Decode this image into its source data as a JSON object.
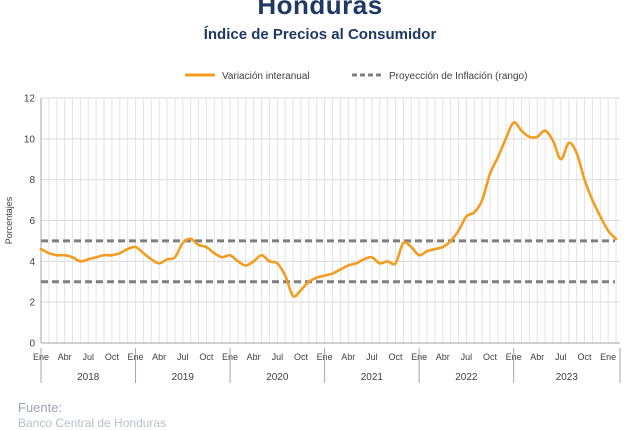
{
  "header": {
    "title": "Honduras",
    "subtitle": "Índice de Precios al Consumidor"
  },
  "footer": {
    "source_label": "Fuente:",
    "source_text": "Banco Central de Honduras"
  },
  "chart_data": {
    "type": "line",
    "title": "Honduras",
    "subtitle": "Índice de Precios al Consumidor",
    "ylabel": "Porcentajes",
    "xlabel": "",
    "ylim": [
      0,
      12
    ],
    "yticks": [
      0,
      2,
      4,
      6,
      8,
      10,
      12
    ],
    "grid": true,
    "legend_placement": "top",
    "month_tick_labels": [
      "Ene",
      "Abr",
      "Jul",
      "Oct"
    ],
    "year_labels": [
      "2018",
      "2019",
      "2020",
      "2021",
      "2022",
      "2023"
    ],
    "series": [
      {
        "name": "Variación interanual",
        "color": "#f39c1f",
        "style": "solid",
        "start": "2018-01",
        "end": "2023-07",
        "values": [
          4.6,
          4.4,
          4.3,
          4.3,
          4.2,
          4.0,
          4.1,
          4.2,
          4.3,
          4.3,
          4.4,
          4.6,
          4.7,
          4.4,
          4.1,
          3.9,
          4.1,
          4.2,
          4.9,
          5.1,
          4.8,
          4.7,
          4.4,
          4.2,
          4.3,
          4.0,
          3.8,
          4.0,
          4.3,
          4.0,
          3.9,
          3.3,
          2.3,
          2.6,
          3.0,
          3.2,
          3.3,
          3.4,
          3.6,
          3.8,
          3.9,
          4.1,
          4.2,
          3.9,
          4.0,
          3.9,
          4.9,
          4.7,
          4.3,
          4.5,
          4.6,
          4.7,
          5.0,
          5.5,
          6.2,
          6.4,
          7.0,
          8.3,
          9.1,
          10.0,
          10.8,
          10.4,
          10.1,
          10.1,
          10.4,
          9.9,
          9.0,
          9.8,
          9.3,
          8.0,
          7.0,
          6.2,
          5.5,
          5.1
        ]
      },
      {
        "name": "Proyección de Inflación (rango)",
        "color": "#7f7f7f",
        "style": "dashed",
        "upper": 5,
        "lower": 3
      }
    ]
  }
}
